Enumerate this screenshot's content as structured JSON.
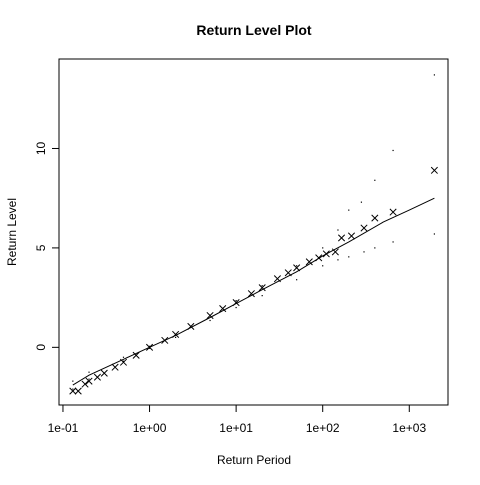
{
  "chart_data": {
    "type": "scatter",
    "title": "Return Level Plot",
    "xlabel": "Return Period",
    "ylabel": "Return Level",
    "x_scale": "log",
    "xlim": [
      0.09,
      2800
    ],
    "ylim": [
      -2.9,
      14.5
    ],
    "x_ticks": [
      {
        "value": 0.1,
        "label": "1e-01"
      },
      {
        "value": 1,
        "label": "1e+00"
      },
      {
        "value": 10,
        "label": "1e+01"
      },
      {
        "value": 100,
        "label": "1e+02"
      },
      {
        "value": 1000,
        "label": "1e+03"
      }
    ],
    "y_ticks": [
      {
        "value": 0,
        "label": "0"
      },
      {
        "value": 5,
        "label": "5"
      },
      {
        "value": 10,
        "label": "10"
      }
    ],
    "grid": false,
    "legend": "none",
    "series": [
      {
        "role": "fitted",
        "style": "line",
        "points": [
          [
            0.13,
            -1.9
          ],
          [
            0.2,
            -1.4
          ],
          [
            0.5,
            -0.6
          ],
          [
            1,
            0
          ],
          [
            2,
            0.6
          ],
          [
            5,
            1.5
          ],
          [
            10,
            2.2
          ],
          [
            20,
            2.9
          ],
          [
            50,
            3.8
          ],
          [
            100,
            4.6
          ],
          [
            200,
            5.3
          ],
          [
            500,
            6.3
          ],
          [
            1000,
            6.9
          ],
          [
            1950,
            7.5
          ]
        ]
      },
      {
        "role": "empirical",
        "style": "marker-x",
        "points": [
          [
            0.13,
            -2.2
          ],
          [
            0.15,
            -2.2
          ],
          [
            0.18,
            -1.85
          ],
          [
            0.2,
            -1.7
          ],
          [
            0.25,
            -1.5
          ],
          [
            0.3,
            -1.3
          ],
          [
            0.4,
            -1.0
          ],
          [
            0.5,
            -0.75
          ],
          [
            0.7,
            -0.4
          ],
          [
            1,
            0.0
          ],
          [
            1.5,
            0.35
          ],
          [
            2,
            0.65
          ],
          [
            3,
            1.05
          ],
          [
            5,
            1.6
          ],
          [
            7,
            1.95
          ],
          [
            10,
            2.25
          ],
          [
            15,
            2.7
          ],
          [
            20,
            3.0
          ],
          [
            30,
            3.45
          ],
          [
            40,
            3.75
          ],
          [
            50,
            4.0
          ],
          [
            70,
            4.3
          ],
          [
            90,
            4.5
          ],
          [
            110,
            4.7
          ],
          [
            140,
            4.8
          ],
          [
            165,
            5.5
          ],
          [
            215,
            5.6
          ],
          [
            300,
            6.0
          ],
          [
            400,
            6.5
          ],
          [
            650,
            6.8
          ],
          [
            1950,
            8.9
          ]
        ]
      },
      {
        "role": "confidence-upper",
        "style": "dots",
        "points": [
          [
            0.13,
            -1.7
          ],
          [
            0.2,
            -1.25
          ],
          [
            0.5,
            -0.5
          ],
          [
            1,
            0.05
          ],
          [
            2,
            0.65
          ],
          [
            5,
            1.6
          ],
          [
            10,
            2.35
          ],
          [
            20,
            3.1
          ],
          [
            50,
            4.1
          ],
          [
            100,
            5.0
          ],
          [
            150,
            5.9
          ],
          [
            200,
            6.9
          ],
          [
            280,
            7.3
          ],
          [
            400,
            8.4
          ],
          [
            650,
            9.9
          ],
          [
            1950,
            13.7
          ]
        ]
      },
      {
        "role": "confidence-lower",
        "style": "dots",
        "points": [
          [
            0.13,
            -2.1
          ],
          [
            0.2,
            -1.6
          ],
          [
            0.5,
            -0.7
          ],
          [
            1,
            -0.05
          ],
          [
            2,
            0.5
          ],
          [
            5,
            1.35
          ],
          [
            10,
            2.0
          ],
          [
            20,
            2.6
          ],
          [
            50,
            3.4
          ],
          [
            100,
            4.1
          ],
          [
            150,
            4.4
          ],
          [
            200,
            4.55
          ],
          [
            300,
            4.8
          ],
          [
            400,
            5.0
          ],
          [
            650,
            5.3
          ],
          [
            1950,
            5.7
          ]
        ]
      }
    ]
  }
}
